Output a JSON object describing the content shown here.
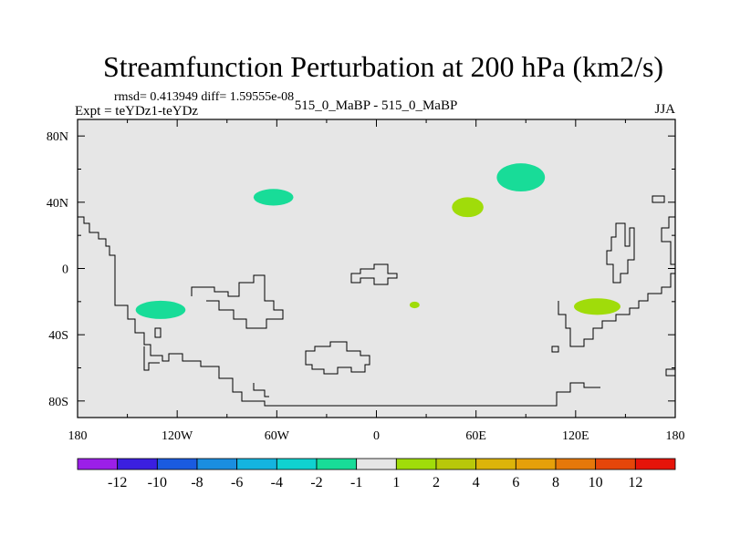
{
  "chart_data": {
    "type": "heatmap",
    "title": "Streamfunction Perturbation at 200 hPa (km2/s)",
    "stats_line": "rmsd= 0.413949 diff= 1.59555e-08",
    "expt_label": "Expt = teYDz1-teYDz",
    "case_label": "515_0_MaBP - 515_0_MaBP",
    "season": "JJA",
    "xlim": [
      -180,
      180
    ],
    "ylim": [
      -90,
      90
    ],
    "x_ticks": [
      {
        "value": -180,
        "label": "180"
      },
      {
        "value": -120,
        "label": "120W"
      },
      {
        "value": -60,
        "label": "60W"
      },
      {
        "value": 0,
        "label": "0"
      },
      {
        "value": 60,
        "label": "60E"
      },
      {
        "value": 120,
        "label": "120E"
      },
      {
        "value": 180,
        "label": "180"
      }
    ],
    "y_ticks": [
      {
        "value": 80,
        "label": "80N"
      },
      {
        "value": 40,
        "label": "40N"
      },
      {
        "value": 0,
        "label": "0"
      },
      {
        "value": -40,
        "label": "40S"
      },
      {
        "value": -80,
        "label": "80S"
      }
    ],
    "colorbar": {
      "colors": [
        "#9b1fe8",
        "#3b1fe0",
        "#1a5be0",
        "#1a8ee0",
        "#14b4e0",
        "#10d2d0",
        "#18dc98",
        "#e6e6e6",
        "#a0dc0a",
        "#b8c80a",
        "#dcb40a",
        "#e6a00a",
        "#e6780a",
        "#e6460a",
        "#e6140a"
      ],
      "labels": [
        "-12",
        "-10",
        "-8",
        "-6",
        "-4",
        "-2",
        "-1",
        "1",
        "2",
        "4",
        "6",
        "8",
        "10",
        "12"
      ]
    },
    "anomalies": [
      {
        "name": "north-pacific-low",
        "lon": -62,
        "lat": 43,
        "rlon": 12,
        "rlat": 5,
        "color": "#18dc98",
        "sign": "negative"
      },
      {
        "name": "south-pacific-low",
        "lon": -130,
        "lat": -25,
        "rlon": 15,
        "rlat": 5.5,
        "color": "#18dc98",
        "sign": "negative"
      },
      {
        "name": "asia-low",
        "lon": 87,
        "lat": 55,
        "rlon": 14.5,
        "rlat": 8.5,
        "color": "#18dc98",
        "sign": "negative"
      },
      {
        "name": "mideast-high",
        "lon": 55,
        "lat": 37,
        "rlon": 9.5,
        "rlat": 6,
        "color": "#a0dc0a",
        "sign": "positive"
      },
      {
        "name": "indian-ocean-high",
        "lon": 23,
        "lat": -22,
        "rlon": 3,
        "rlat": 2,
        "color": "#a0dc0a",
        "sign": "positive"
      },
      {
        "name": "australia-high",
        "lon": 133,
        "lat": -23,
        "rlon": 14,
        "rlat": 5,
        "color": "#a0dc0a",
        "sign": "positive"
      }
    ]
  }
}
